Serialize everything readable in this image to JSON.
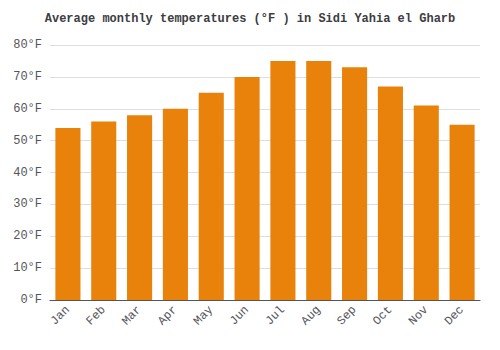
{
  "chart_data": {
    "type": "bar",
    "title": "Average monthly temperatures (°F ) in Sidi Yahia el Gharb",
    "categories": [
      "Jan",
      "Feb",
      "Mar",
      "Apr",
      "May",
      "Jun",
      "Jul",
      "Aug",
      "Sep",
      "Oct",
      "Nov",
      "Dec"
    ],
    "values": [
      54,
      56,
      58,
      60,
      65,
      70,
      75,
      75,
      73,
      67,
      61,
      55
    ],
    "color": "#E8820A",
    "ylim": [
      0,
      80
    ],
    "yticks": [
      {
        "value": 0,
        "label": "0°F"
      },
      {
        "value": 10,
        "label": "10°F"
      },
      {
        "value": 20,
        "label": "20°F"
      },
      {
        "value": 30,
        "label": "30°F"
      },
      {
        "value": 40,
        "label": "40°F"
      },
      {
        "value": 50,
        "label": "50°F"
      },
      {
        "value": 60,
        "label": "60°F"
      },
      {
        "value": 70,
        "label": "70°F"
      },
      {
        "value": 80,
        "label": "80°F"
      }
    ],
    "grid": true
  }
}
